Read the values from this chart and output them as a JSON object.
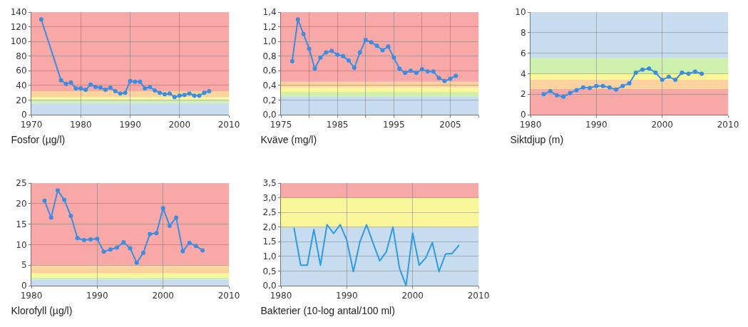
{
  "chart_data": [
    {
      "type": "line",
      "title": "Fosfor (µg/l)",
      "x": [
        1972,
        1976,
        1977,
        1978,
        1979,
        1980,
        1981,
        1982,
        1983,
        1984,
        1985,
        1986,
        1987,
        1988,
        1989,
        1990,
        1991,
        1992,
        1993,
        1994,
        1995,
        1996,
        1997,
        1998,
        1999,
        2000,
        2001,
        2002,
        2003,
        2004,
        2005,
        2006
      ],
      "series": [
        {
          "color": "#3a8de0",
          "values": [
            130,
            47,
            42,
            44,
            36,
            36,
            34,
            41,
            38,
            37,
            34,
            37,
            32,
            29,
            30,
            46,
            45,
            45,
            36,
            38,
            33,
            30,
            28,
            29,
            24,
            26,
            27,
            29,
            26,
            26,
            30,
            32
          ]
        }
      ],
      "xlim": [
        1970,
        2010
      ],
      "xticks": [
        1970,
        1980,
        1990,
        2000,
        2010
      ],
      "ylim": [
        0,
        140
      ],
      "yticks": [
        0,
        20,
        40,
        60,
        80,
        100,
        120,
        140
      ],
      "bands": [
        {
          "axis": "y",
          "from": 0,
          "to": 16,
          "color": "#c7dcee"
        },
        {
          "axis": "y",
          "from": 16,
          "to": 20,
          "color": "#cdf0ac"
        },
        {
          "axis": "y",
          "from": 20,
          "to": 24,
          "color": "#f9f79a"
        },
        {
          "axis": "y",
          "from": 24,
          "to": 32,
          "color": "#fcd29e"
        },
        {
          "axis": "y",
          "from": 32,
          "to": 140,
          "color": "#f9a8a8"
        }
      ],
      "grid": true,
      "marker": "circle",
      "line_style": "solid"
    },
    {
      "type": "line",
      "title": "Kväve (mg/l)",
      "x": [
        1977,
        1978,
        1979,
        1980,
        1981,
        1982,
        1983,
        1984,
        1985,
        1986,
        1987,
        1988,
        1989,
        1990,
        1991,
        1992,
        1993,
        1994,
        1995,
        1996,
        1997,
        1998,
        1999,
        2000,
        2001,
        2002,
        2003,
        2004,
        2005,
        2006
      ],
      "series": [
        {
          "color": "#3a8de0",
          "values": [
            0.73,
            1.3,
            1.1,
            0.9,
            0.63,
            0.78,
            0.85,
            0.87,
            0.82,
            0.8,
            0.74,
            0.64,
            0.85,
            1.02,
            0.99,
            0.94,
            0.88,
            0.93,
            0.78,
            0.63,
            0.57,
            0.6,
            0.57,
            0.62,
            0.59,
            0.59,
            0.5,
            0.46,
            0.49,
            0.53
          ]
        }
      ],
      "xlim": [
        1975,
        2010
      ],
      "xticks": [
        1975,
        {
          "value": 1980,
          "label": null
        },
        1985,
        {
          "value": 1990,
          "label": null
        },
        1995,
        {
          "value": 2000,
          "label": null
        },
        2005,
        {
          "value": 2010,
          "label": null
        }
      ],
      "ylim": [
        0,
        1.4
      ],
      "yticks": [
        {
          "value": 0,
          "label": "0,0"
        },
        {
          "value": 0.2,
          "label": "0,2"
        },
        {
          "value": 0.4,
          "label": "0,4"
        },
        {
          "value": 0.6,
          "label": "0,6"
        },
        {
          "value": 0.8,
          "label": "0,8"
        },
        {
          "value": 1,
          "label": "1,0"
        },
        {
          "value": 1.2,
          "label": "1,2"
        },
        {
          "value": 1.4,
          "label": "1,4"
        }
      ],
      "bands": [
        {
          "axis": "y",
          "from": 0,
          "to": 0.25,
          "color": "#c7dcee"
        },
        {
          "axis": "y",
          "from": 0.25,
          "to": 0.31,
          "color": "#cdf0ac"
        },
        {
          "axis": "y",
          "from": 0.31,
          "to": 0.375,
          "color": "#f9f79a"
        },
        {
          "axis": "y",
          "from": 0.375,
          "to": 0.45,
          "color": "#fcd29e"
        },
        {
          "axis": "y",
          "from": 0.45,
          "to": 1.4,
          "color": "#f9a8a8"
        }
      ],
      "grid": true,
      "marker": "circle",
      "line_style": "solid"
    },
    {
      "type": "line",
      "title": "Siktdjup (m)",
      "x": [
        1982,
        1983,
        1984,
        1985,
        1986,
        1987,
        1988,
        1989,
        1990,
        1991,
        1992,
        1993,
        1994,
        1995,
        1996,
        1997,
        1998,
        1999,
        2000,
        2001,
        2002,
        2003,
        2004,
        2005,
        2006
      ],
      "series": [
        {
          "color": "#3a8de0",
          "values": [
            2.0,
            2.3,
            1.9,
            1.75,
            2.1,
            2.4,
            2.65,
            2.6,
            2.8,
            2.8,
            2.65,
            2.45,
            2.8,
            3.05,
            4.1,
            4.4,
            4.5,
            4.1,
            3.4,
            3.7,
            3.4,
            4.1,
            4.0,
            4.2,
            4.0
          ]
        }
      ],
      "xlim": [
        1980,
        2010
      ],
      "xticks": [
        1980,
        1990,
        2000,
        2010
      ],
      "ylim": [
        0,
        10
      ],
      "yticks": [
        0,
        2,
        4,
        6,
        8,
        10
      ],
      "bands": [
        {
          "axis": "y",
          "from": 0,
          "to": 2.5,
          "color": "#f9a8a8"
        },
        {
          "axis": "y",
          "from": 2.5,
          "to": 3.4,
          "color": "#fcd29e"
        },
        {
          "axis": "y",
          "from": 3.4,
          "to": 4,
          "color": "#f9f79a"
        },
        {
          "axis": "y",
          "from": 4,
          "to": 5.5,
          "color": "#cdf0ac"
        },
        {
          "axis": "y",
          "from": 5.5,
          "to": 10,
          "color": "#c7dcee"
        }
      ],
      "grid": true,
      "marker": "circle",
      "line_style": "solid"
    },
    {
      "type": "line",
      "title": "Klorofyll (µg/l)",
      "x": [
        1982,
        1983,
        1984,
        1985,
        1986,
        1987,
        1988,
        1989,
        1990,
        1991,
        1992,
        1993,
        1994,
        1995,
        1996,
        1997,
        1998,
        1999,
        2000,
        2001,
        2002,
        2003,
        2004,
        2005,
        2006
      ],
      "series": [
        {
          "color": "#3a8de0",
          "values": [
            20.7,
            16.6,
            23.2,
            20.9,
            17.0,
            11.6,
            11.1,
            11.3,
            11.4,
            8.3,
            8.8,
            9.3,
            10.6,
            9.1,
            5.6,
            8.0,
            12.6,
            12.8,
            18.9,
            14.6,
            16.6,
            8.4,
            10.4,
            9.7,
            8.6
          ]
        }
      ],
      "xlim": [
        1980,
        2010
      ],
      "xticks": [
        1980,
        1990,
        2000,
        2010
      ],
      "ylim": [
        0,
        25
      ],
      "yticks": [
        0,
        5,
        10,
        15,
        20,
        25
      ],
      "bands": [
        {
          "axis": "y",
          "from": 0,
          "to": 1.5,
          "color": "#c7dcee"
        },
        {
          "axis": "y",
          "from": 1.5,
          "to": 2,
          "color": "#cdf0ac"
        },
        {
          "axis": "y",
          "from": 2,
          "to": 3,
          "color": "#f9f79a"
        },
        {
          "axis": "y",
          "from": 3,
          "to": 5,
          "color": "#fcd29e"
        },
        {
          "axis": "y",
          "from": 5,
          "to": 25,
          "color": "#f9a8a8"
        }
      ],
      "grid": true,
      "marker": "circle",
      "line_style": "solid"
    },
    {
      "type": "line",
      "title": "Bakterier (10-log antal/100 ml)",
      "x": [
        1982,
        1983,
        1984,
        1985,
        1986,
        1987,
        1988,
        1989,
        1990,
        1991,
        1992,
        1993,
        1994,
        1995,
        1996,
        1997,
        1998,
        1999,
        2000,
        2001,
        2002,
        2003,
        2004,
        2005,
        2006,
        2007
      ],
      "series": [
        {
          "color": "#2e9be6",
          "values": [
            1.95,
            0.7,
            0.7,
            1.92,
            0.7,
            2.08,
            1.78,
            2.08,
            1.55,
            0.48,
            1.5,
            2.08,
            1.45,
            0.85,
            1.15,
            2.0,
            0.6,
            0.0,
            1.8,
            0.7,
            0.95,
            1.47,
            0.48,
            1.08,
            1.1,
            1.37
          ]
        }
      ],
      "xlim": [
        1980,
        2010
      ],
      "xticks": [
        1980,
        1990,
        2000,
        2010
      ],
      "ylim": [
        0,
        3.5
      ],
      "yticks": [
        {
          "value": 0,
          "label": "0,0"
        },
        {
          "value": 0.5,
          "label": "0,5"
        },
        {
          "value": 1,
          "label": "1,0"
        },
        {
          "value": 1.5,
          "label": "1,5"
        },
        {
          "value": 2,
          "label": "2,0"
        },
        {
          "value": 2.5,
          "label": "2,5"
        },
        {
          "value": 3,
          "label": "3,0"
        },
        {
          "value": 3.5,
          "label": "3,5"
        }
      ],
      "bands": [
        {
          "axis": "y",
          "from": 0,
          "to": 2,
          "color": "#c7dcee"
        },
        {
          "axis": "y",
          "from": 2,
          "to": 3,
          "color": "#f9f79a"
        },
        {
          "axis": "y",
          "from": 3,
          "to": 3.5,
          "color": "#f9a8a8"
        }
      ],
      "grid": true,
      "marker": "none",
      "line_style": "solid"
    }
  ]
}
